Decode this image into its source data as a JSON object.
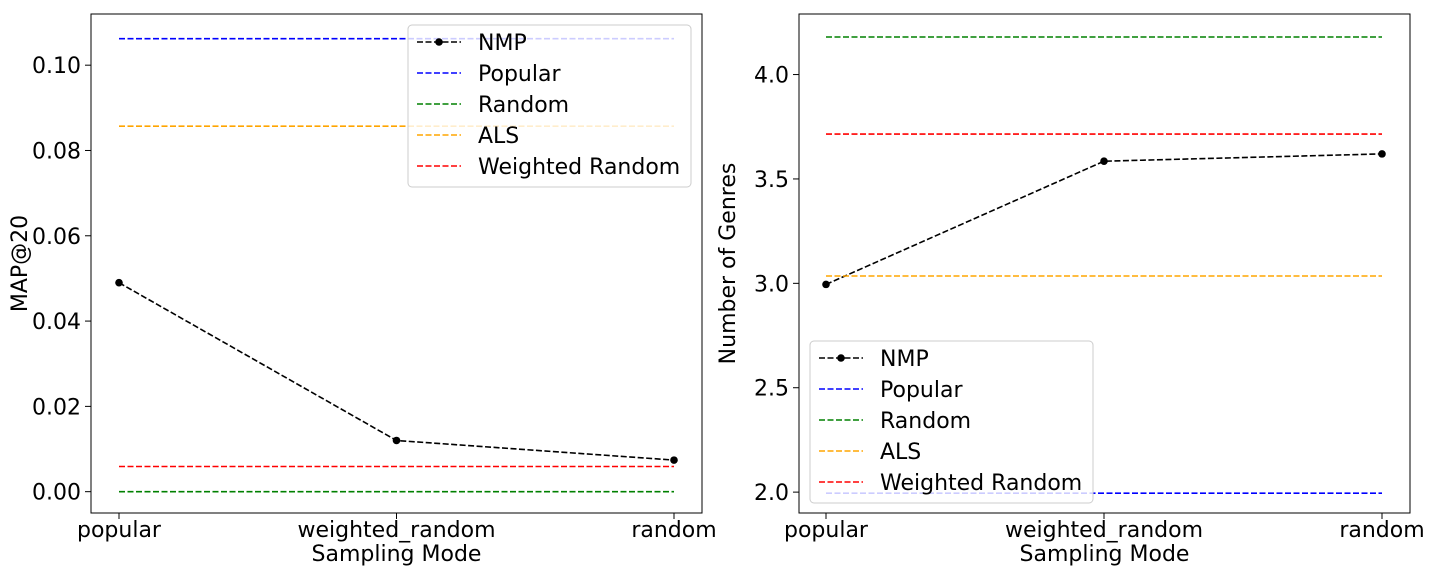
{
  "chart_data": [
    {
      "type": "line",
      "title": "",
      "xlabel": "Sampling Mode",
      "ylabel": "MAP@20",
      "categories": [
        "popular",
        "weighted_random",
        "random"
      ],
      "ylim": [
        -0.005,
        0.112
      ],
      "yticks": [
        "0.00",
        "0.02",
        "0.04",
        "0.06",
        "0.08",
        "0.10"
      ],
      "ytick_values": [
        0.0,
        0.02,
        0.04,
        0.06,
        0.08,
        0.1
      ],
      "grid": false,
      "legend_position": "top-right",
      "series": [
        {
          "name": "NMP",
          "values": [
            0.049,
            0.012,
            0.0074
          ],
          "color": "#000000",
          "marker": true
        },
        {
          "name": "Popular",
          "values": [
            0.1062,
            0.1062,
            0.1062
          ],
          "color": "#0000ff",
          "marker": false
        },
        {
          "name": "Random",
          "values": [
            0.0,
            0.0,
            0.0
          ],
          "color": "#008000",
          "marker": false
        },
        {
          "name": "ALS",
          "values": [
            0.0857,
            0.0857,
            0.0857
          ],
          "color": "#ffa500",
          "marker": false
        },
        {
          "name": "Weighted Random",
          "values": [
            0.0059,
            0.0059,
            0.0059
          ],
          "color": "#ff0000",
          "marker": false
        }
      ]
    },
    {
      "type": "line",
      "title": "",
      "xlabel": "Sampling Mode",
      "ylabel": "Number of Genres",
      "categories": [
        "popular",
        "weighted_random",
        "random"
      ],
      "ylim": [
        1.9,
        4.29
      ],
      "yticks": [
        "2.0",
        "2.5",
        "3.0",
        "3.5",
        "4.0"
      ],
      "ytick_values": [
        2.0,
        2.5,
        3.0,
        3.5,
        4.0
      ],
      "grid": false,
      "legend_position": "bottom-left",
      "series": [
        {
          "name": "NMP",
          "values": [
            2.995,
            3.585,
            3.62
          ],
          "color": "#000000",
          "marker": true
        },
        {
          "name": "Popular",
          "values": [
            1.995,
            1.995,
            1.995
          ],
          "color": "#0000ff",
          "marker": false
        },
        {
          "name": "Random",
          "values": [
            4.18,
            4.18,
            4.18
          ],
          "color": "#008000",
          "marker": false
        },
        {
          "name": "ALS",
          "values": [
            3.035,
            3.035,
            3.035
          ],
          "color": "#ffa500",
          "marker": false
        },
        {
          "name": "Weighted Random",
          "values": [
            3.715,
            3.715,
            3.715
          ],
          "color": "#ff0000",
          "marker": false
        }
      ]
    }
  ]
}
